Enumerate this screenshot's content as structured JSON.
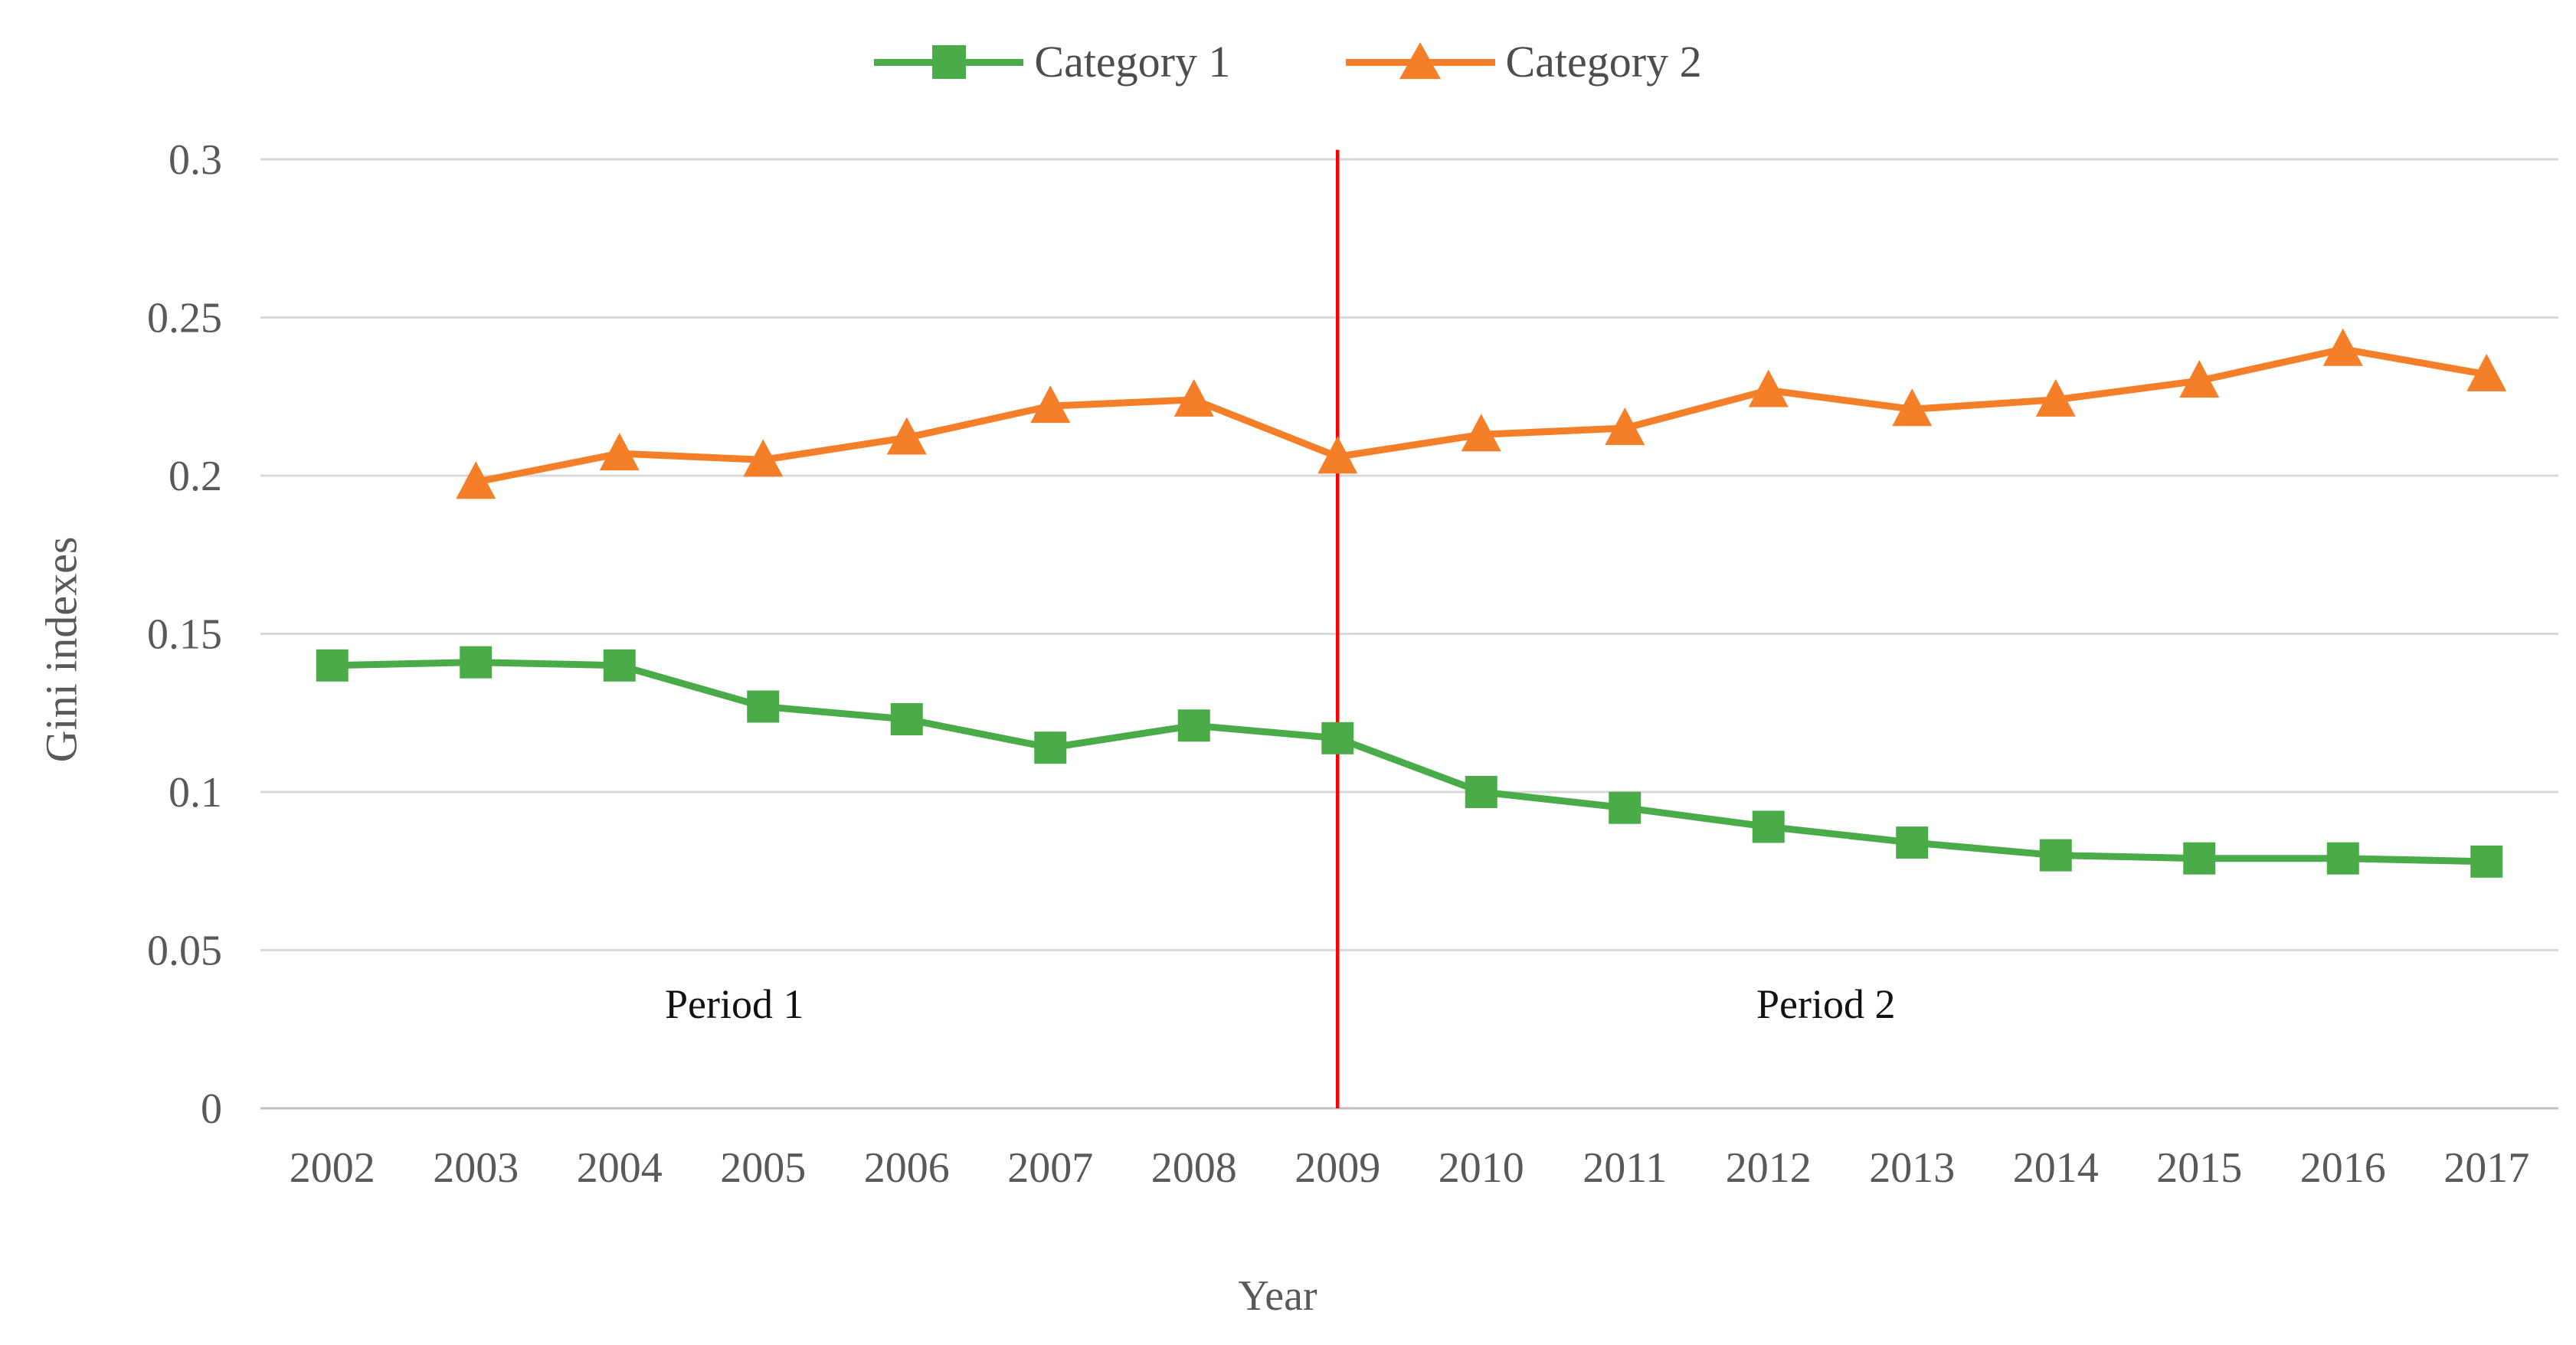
{
  "chart_data": {
    "type": "line",
    "title": "",
    "xlabel": "Year",
    "ylabel": "Gini indexes",
    "x": [
      2002,
      2003,
      2004,
      2005,
      2006,
      2007,
      2008,
      2009,
      2010,
      2011,
      2012,
      2013,
      2014,
      2015,
      2016,
      2017
    ],
    "series": [
      {
        "name": "Category 1",
        "marker": "square",
        "color": "#4AAB49",
        "values": [
          0.14,
          0.141,
          0.14,
          0.127,
          0.123,
          0.114,
          0.121,
          0.117,
          0.1,
          0.095,
          0.089,
          0.084,
          0.08,
          0.079,
          0.079,
          0.078
        ]
      },
      {
        "name": "Category 2",
        "marker": "triangle",
        "color": "#F57E28",
        "values": [
          null,
          0.198,
          0.207,
          0.205,
          0.212,
          0.222,
          0.224,
          0.206,
          0.213,
          0.215,
          0.227,
          0.221,
          0.224,
          0.23,
          0.24,
          0.232
        ]
      }
    ],
    "ylim": [
      0,
      0.3
    ],
    "y_ticks": [
      0,
      0.05,
      0.1,
      0.15,
      0.2,
      0.25,
      0.3
    ],
    "y_tick_labels": [
      "0",
      "0.05",
      "0.1",
      "0.15",
      "0.2",
      "0.25",
      "0.3"
    ],
    "grid": "horizontal",
    "legend_position": "top-center",
    "divider_line": {
      "x_year": 2009,
      "y_from": 0,
      "y_to": 0.303,
      "color": "#FF0000"
    },
    "annotations": [
      {
        "label": "Period 1",
        "x_year": 2004.8,
        "y_value": 0.033
      },
      {
        "label": "Period 2",
        "x_year": 2012.4,
        "y_value": 0.033
      }
    ]
  },
  "colors": {
    "grid": "#D9D9D9",
    "axis": "#BFBFBF",
    "tick_text": "#595959"
  }
}
